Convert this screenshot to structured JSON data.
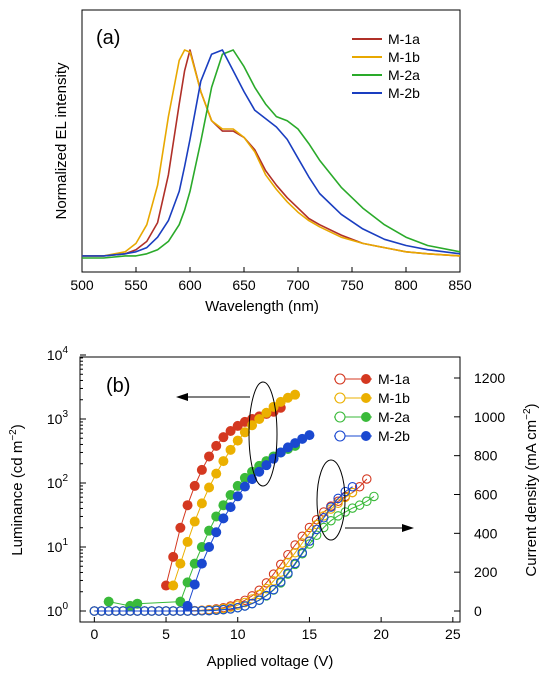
{
  "chart_data": [
    {
      "type": "line",
      "panel_label": "(a)",
      "xlabel": "Wavelength (nm)",
      "ylabel": "Normalized EL intensity",
      "xlim": [
        500,
        850
      ],
      "xticks": [
        500,
        550,
        600,
        650,
        700,
        750,
        800,
        850
      ],
      "ylim": [
        0,
        1.0
      ],
      "y_ticks_shown": false,
      "grid": false,
      "legend": "top-right",
      "x": [
        500,
        520,
        540,
        550,
        560,
        570,
        580,
        590,
        595,
        600,
        610,
        620,
        630,
        640,
        650,
        660,
        670,
        680,
        690,
        700,
        710,
        720,
        740,
        760,
        780,
        800,
        820,
        850
      ],
      "series": [
        {
          "name": "M-1a",
          "color": "#b03028",
          "values": [
            0.01,
            0.01,
            0.02,
            0.04,
            0.08,
            0.17,
            0.4,
            0.74,
            0.9,
            1.0,
            0.8,
            0.66,
            0.61,
            0.61,
            0.58,
            0.52,
            0.42,
            0.35,
            0.29,
            0.24,
            0.19,
            0.16,
            0.11,
            0.07,
            0.05,
            0.03,
            0.02,
            0.01
          ]
        },
        {
          "name": "M-1b",
          "color": "#e8a800",
          "values": [
            0.01,
            0.01,
            0.03,
            0.07,
            0.16,
            0.35,
            0.68,
            0.95,
            1.0,
            0.99,
            0.8,
            0.66,
            0.62,
            0.62,
            0.58,
            0.51,
            0.4,
            0.33,
            0.27,
            0.22,
            0.18,
            0.15,
            0.1,
            0.07,
            0.05,
            0.03,
            0.02,
            0.01
          ]
        },
        {
          "name": "M-2a",
          "color": "#2aaa2a",
          "values": [
            0.0,
            0.0,
            0.01,
            0.01,
            0.02,
            0.04,
            0.08,
            0.16,
            0.23,
            0.32,
            0.56,
            0.82,
            0.98,
            1.0,
            0.92,
            0.82,
            0.74,
            0.68,
            0.66,
            0.62,
            0.55,
            0.47,
            0.34,
            0.24,
            0.16,
            0.1,
            0.06,
            0.03
          ]
        },
        {
          "name": "M-2b",
          "color": "#1a3ec0",
          "values": [
            0.01,
            0.01,
            0.02,
            0.03,
            0.05,
            0.1,
            0.18,
            0.32,
            0.44,
            0.57,
            0.85,
            0.98,
            1.0,
            0.9,
            0.8,
            0.71,
            0.67,
            0.63,
            0.57,
            0.48,
            0.39,
            0.31,
            0.21,
            0.14,
            0.09,
            0.06,
            0.04,
            0.02
          ]
        }
      ]
    },
    {
      "type": "scatter",
      "panel_label": "(b)",
      "xlabel": "Applied voltage (V)",
      "ylabel_left": "Luminance (cd m",
      "ylabel_left_exp": "−2",
      "ylabel_left_close": ")",
      "ylabel_right": "Current density (mA cm",
      "ylabel_right_exp": "−2",
      "ylabel_right_close": ")",
      "xlim": [
        -1,
        25.5
      ],
      "xticks": [
        0,
        5,
        10,
        15,
        20,
        25
      ],
      "ylim_left_log": [
        1,
        10000
      ],
      "yticks_left": [
        {
          "base": "10",
          "exp": "0"
        },
        {
          "base": "10",
          "exp": "1"
        },
        {
          "base": "10",
          "exp": "2"
        },
        {
          "base": "10",
          "exp": "3"
        },
        {
          "base": "10",
          "exp": "4"
        }
      ],
      "ylim_right": [
        -40,
        1300
      ],
      "yticks_right": [
        0,
        200,
        400,
        600,
        800,
        1000,
        1200
      ],
      "grid": false,
      "legend": "top-right",
      "legend_note": "open circles = current density, filled circles = luminance",
      "luminance_axis": "left (arrow points left)",
      "current_axis": "right (arrow points right)",
      "series": [
        {
          "name": "M-1a",
          "color": "#d43820",
          "luminance": {
            "x": [
              5.0,
              5.5,
              6.0,
              6.5,
              7.0,
              7.5,
              8.0,
              8.5,
              9.0,
              9.5,
              10.0,
              10.5,
              11.0,
              11.5,
              12.0,
              12.5,
              13.0
            ],
            "y": [
              2.5,
              7,
              20,
              45,
              90,
              160,
              260,
              380,
              520,
              650,
              780,
              900,
              1000,
              1100,
              1200,
              1300,
              1500
            ]
          },
          "current_density": {
            "x": [
              5,
              5.5,
              6,
              6.5,
              7,
              7.5,
              8,
              8.5,
              9,
              9.5,
              10,
              10.5,
              11,
              11.5,
              12,
              12.5,
              13,
              13.5,
              14,
              14.5,
              15,
              15.5,
              16,
              16.5,
              17,
              17.5,
              18,
              18.5,
              19
            ],
            "y": [
              0,
              0,
              0,
              0,
              2,
              4,
              7,
              11,
              17,
              26,
              38,
              55,
              78,
              107,
              145,
              190,
              240,
              290,
              340,
              385,
              430,
              470,
              510,
              540,
              565,
              590,
              610,
              640,
              680
            ]
          }
        },
        {
          "name": "M-1b",
          "color": "#ebb000",
          "luminance": {
            "x": [
              5.5,
              6.0,
              6.5,
              7.0,
              7.5,
              8.0,
              8.5,
              9.0,
              9.5,
              10.0,
              10.5,
              11.0,
              11.5,
              12.0,
              12.5,
              13.0,
              13.5,
              14.0
            ],
            "y": [
              2.5,
              5.5,
              12,
              25,
              48,
              85,
              140,
              220,
              330,
              460,
              620,
              800,
              1000,
              1250,
              1550,
              1850,
              2150,
              2400
            ]
          },
          "current_density": {
            "x": [
              5,
              5.5,
              6,
              6.5,
              7,
              7.5,
              8,
              8.5,
              9,
              9.5,
              10,
              10.5,
              11,
              11.5,
              12,
              12.5,
              13,
              13.5,
              14,
              14.5,
              15,
              15.5,
              16,
              16.5,
              17,
              17.5,
              18
            ],
            "y": [
              0,
              0,
              0,
              0,
              1,
              3,
              5,
              8,
              13,
              20,
              30,
              44,
              62,
              85,
              115,
              155,
              200,
              250,
              300,
              350,
              400,
              445,
              490,
              525,
              555,
              585,
              610
            ]
          }
        },
        {
          "name": "M-2a",
          "color": "#3aba3a",
          "luminance": {
            "x": [
              1,
              2.5,
              3,
              6.0,
              6.5,
              7.0,
              7.5,
              8.0,
              8.5,
              9.0,
              9.5,
              10.0,
              10.5,
              11.0,
              11.5,
              12.0,
              12.5,
              13.0,
              13.5,
              14.0
            ],
            "y": [
              1.4,
              1.2,
              1.3,
              1.4,
              2.8,
              5.5,
              10,
              18,
              30,
              45,
              65,
              90,
              120,
              150,
              185,
              220,
              260,
              300,
              340,
              380
            ]
          },
          "current_density": {
            "x": [
              5,
              5.5,
              6,
              6.5,
              7,
              7.5,
              8,
              8.5,
              9,
              9.5,
              10,
              10.5,
              11,
              11.5,
              12,
              12.5,
              13,
              13.5,
              14,
              14.5,
              15,
              15.5,
              16,
              16.5,
              17,
              17.5,
              18,
              18.5,
              19,
              19.5
            ],
            "y": [
              0,
              0,
              0,
              0,
              0,
              1,
              2,
              4,
              7,
              11,
              17,
              26,
              38,
              55,
              78,
              108,
              145,
              190,
              240,
              295,
              345,
              390,
              430,
              465,
              490,
              510,
              530,
              545,
              565,
              590
            ]
          }
        },
        {
          "name": "M-2b",
          "color": "#1a48d0",
          "luminance": {
            "x": [
              6.5,
              7.0,
              7.5,
              8.0,
              8.5,
              9.0,
              9.5,
              10.0,
              10.5,
              11.0,
              11.5,
              12.0,
              12.5,
              13.0,
              13.5,
              14.0,
              14.5,
              15.0
            ],
            "y": [
              1.2,
              2.6,
              5.5,
              10,
              17,
              28,
              42,
              62,
              88,
              115,
              150,
              190,
              240,
              300,
              360,
              420,
              490,
              560
            ]
          },
          "current_density": {
            "x": [
              5,
              5.5,
              6,
              6.5,
              7,
              7.5,
              8,
              8.5,
              9,
              9.5,
              10,
              10.5,
              11,
              11.5,
              12,
              12.5,
              13,
              13.5,
              14,
              14.5,
              15,
              15.5,
              16,
              16.5,
              17,
              17.5,
              18
            ],
            "y": [
              0,
              0,
              0,
              0,
              0,
              1,
              2,
              4,
              7,
              11,
              17,
              26,
              38,
              56,
              80,
              110,
              150,
              195,
              245,
              300,
              360,
              420,
              480,
              535,
              580,
              615,
              640
            ]
          }
        }
      ],
      "baseline": {
        "x": [
          0,
          0.5,
          1,
          1.5,
          2,
          2.5,
          3,
          3.5,
          4,
          4.5
        ],
        "y_current": 0
      }
    }
  ]
}
